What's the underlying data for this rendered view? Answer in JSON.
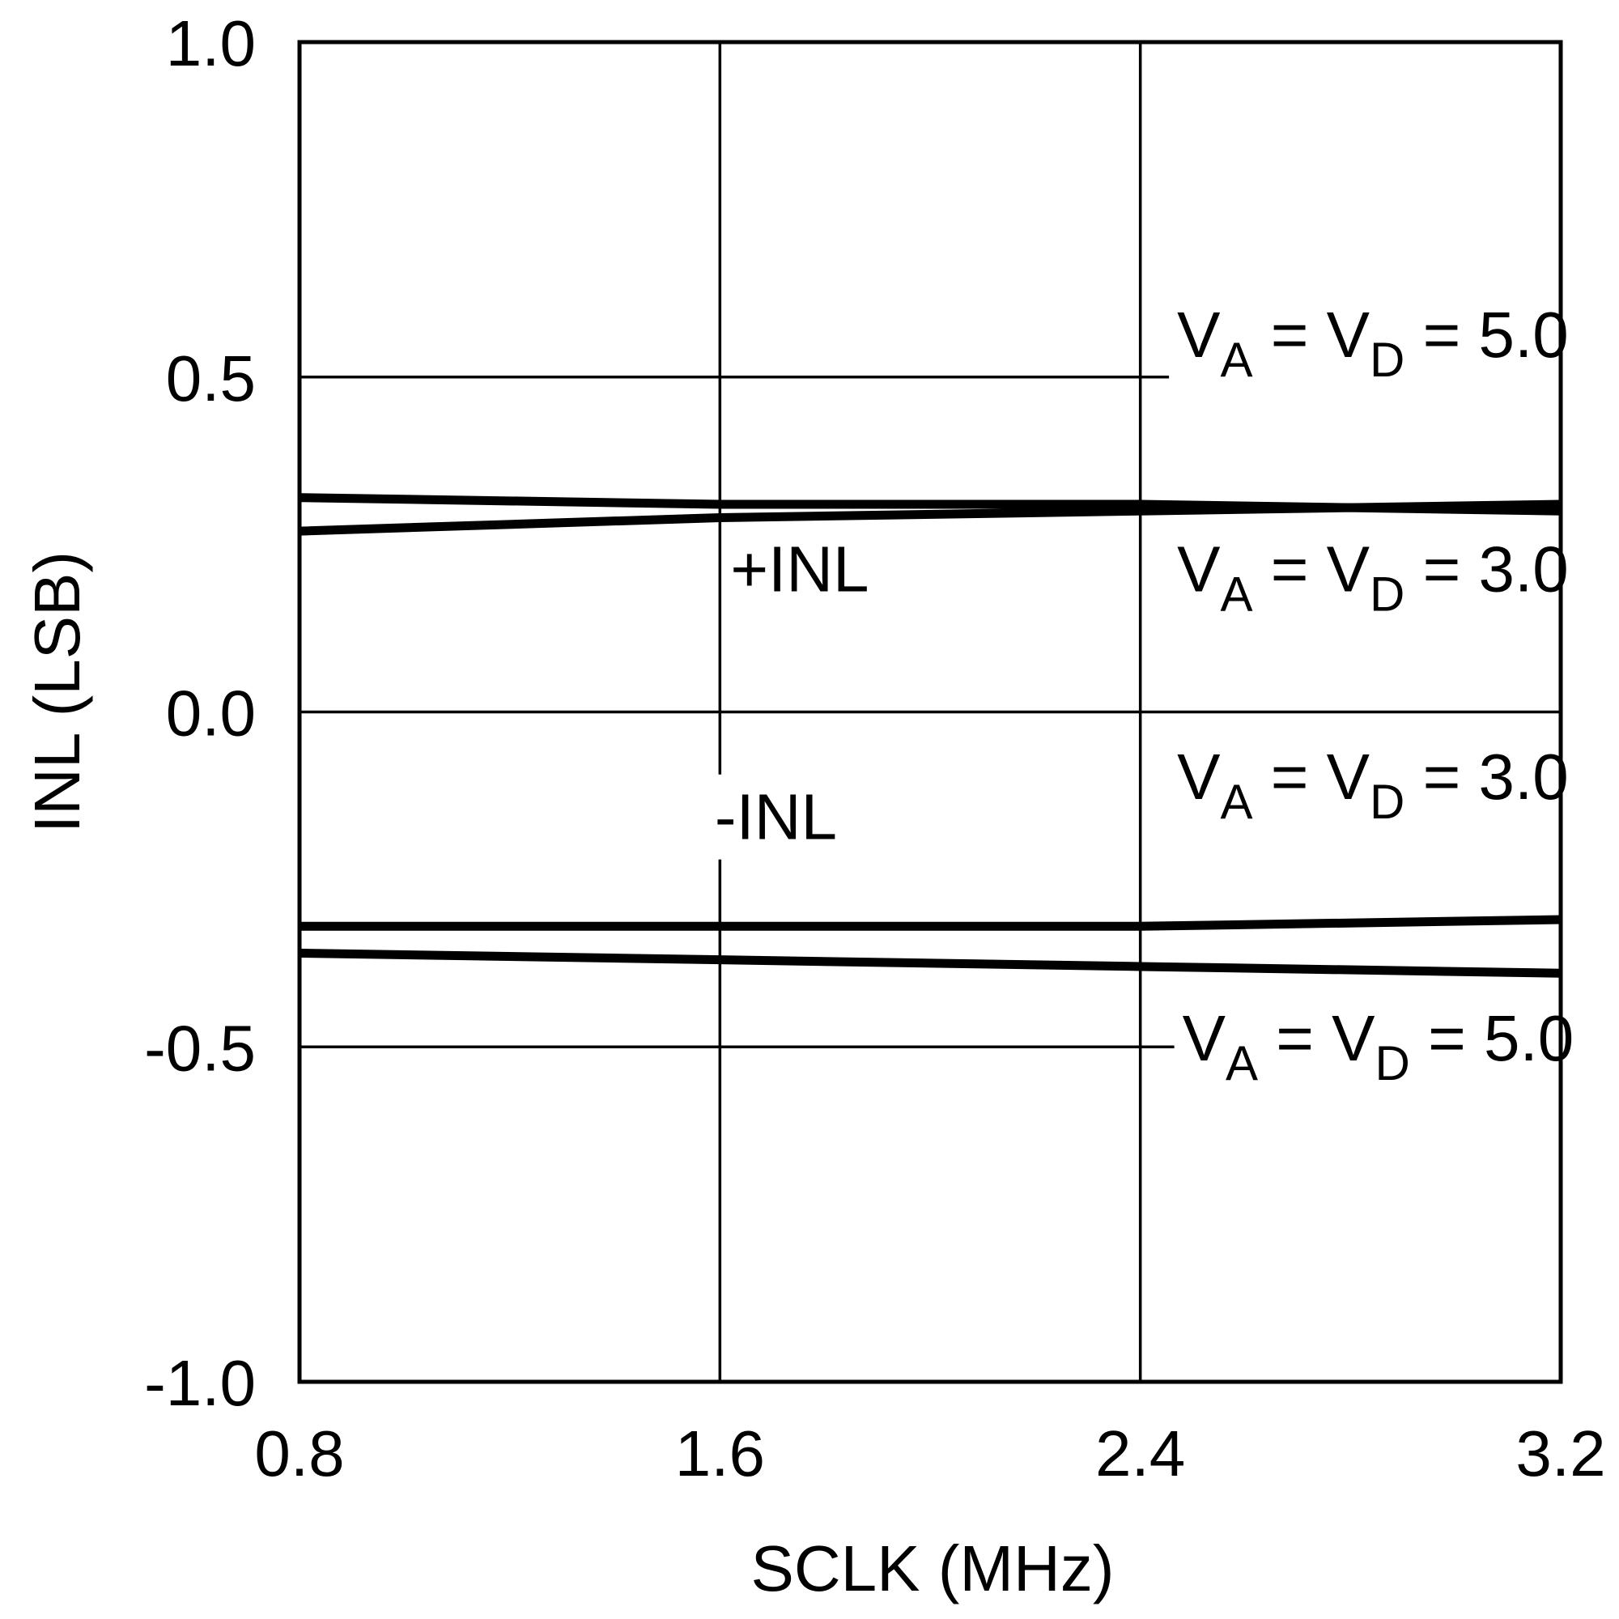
{
  "chart_data": {
    "type": "line",
    "xlabel": "SCLK (MHz)",
    "ylabel": "INL (LSB)",
    "xlim": [
      0.8,
      3.2
    ],
    "ylim": [
      -1.0,
      1.0
    ],
    "x_ticks": [
      "0.8",
      "1.6",
      "2.4",
      "3.2"
    ],
    "y_ticks": [
      "1.0",
      "0.5",
      "0.0",
      "-0.5",
      "-1.0"
    ],
    "grid": true,
    "series": [
      {
        "group": "+INL",
        "x": [
          0.8,
          1.6,
          2.4,
          3.2
        ],
        "y": [
          0.32,
          0.31,
          0.31,
          0.3
        ],
        "color": "#000000"
      },
      {
        "group": "+INL",
        "x": [
          0.8,
          1.6,
          2.4,
          3.2
        ],
        "y": [
          0.27,
          0.29,
          0.3,
          0.31
        ],
        "color": "#000000"
      },
      {
        "group": "-INL",
        "x": [
          0.8,
          1.6,
          2.4,
          3.2
        ],
        "y": [
          -0.32,
          -0.32,
          -0.32,
          -0.31
        ],
        "color": "#000000"
      },
      {
        "group": "-INL",
        "x": [
          0.8,
          1.6,
          2.4,
          3.2
        ],
        "y": [
          -0.36,
          -0.37,
          -0.38,
          -0.39
        ],
        "color": "#000000"
      }
    ],
    "annotations": [
      {
        "name": "plus-inl",
        "text": "+INL",
        "x": 1.62,
        "y": 0.18
      },
      {
        "name": "minus-inl",
        "text": "-INL",
        "x": 1.59,
        "y": -0.19
      },
      {
        "name": "va-top",
        "main": "V",
        "sub1": "A",
        "mid": " = V",
        "sub2": "D",
        "tail": " = 5.0",
        "x": 2.47,
        "y": 0.53
      },
      {
        "name": "va-upper-mid",
        "main": "V",
        "sub1": "A",
        "mid": " = V",
        "sub2": "D",
        "tail": " = 3.0",
        "x": 2.47,
        "y": 0.18
      },
      {
        "name": "va-lower-mid",
        "main": "V",
        "sub1": "A",
        "mid": " = V",
        "sub2": "D",
        "tail": " = 3.0",
        "x": 2.47,
        "y": -0.13
      },
      {
        "name": "va-bottom",
        "main": "V",
        "sub1": "A",
        "mid": " = V",
        "sub2": "D",
        "tail": " = 5.0",
        "x": 2.48,
        "y": -0.52
      }
    ]
  }
}
